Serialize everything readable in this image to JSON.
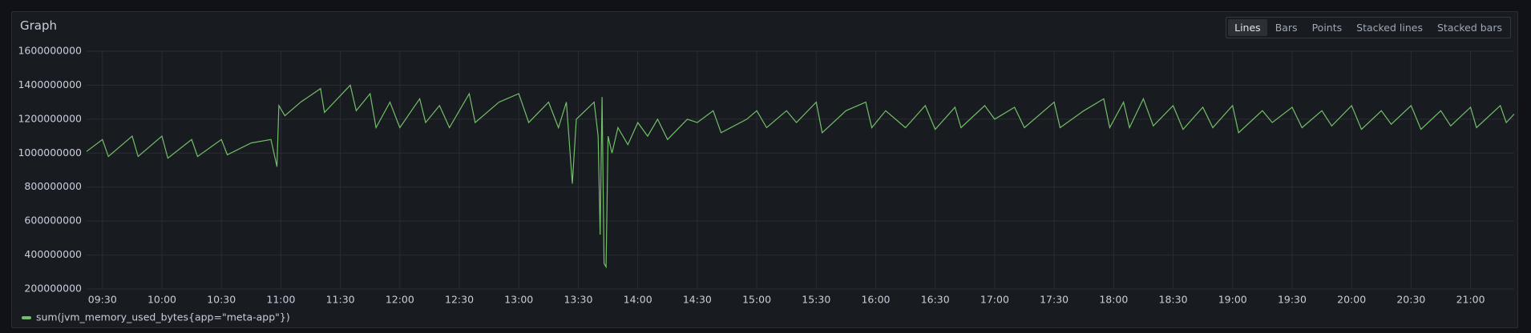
{
  "panel": {
    "title": "Graph",
    "modes": [
      "Lines",
      "Bars",
      "Points",
      "Stacked lines",
      "Stacked bars"
    ]
  },
  "chart_data": {
    "type": "line",
    "x": [
      "09:22",
      "09:30",
      "09:33",
      "09:45",
      "09:48",
      "10:00",
      "10:03",
      "10:15",
      "10:18",
      "10:30",
      "10:33",
      "10:45",
      "10:55",
      "10:58",
      "10:59",
      "11:02",
      "11:10",
      "11:20",
      "11:22",
      "11:35",
      "11:38",
      "11:45",
      "11:48",
      "11:55",
      "12:00",
      "12:10",
      "12:13",
      "12:20",
      "12:25",
      "12:35",
      "12:38",
      "12:50",
      "13:00",
      "13:05",
      "13:15",
      "13:20",
      "13:24",
      "13:27",
      "13:29",
      "13:38",
      "13:40",
      "13:41",
      "13:42",
      "13:43",
      "13:44",
      "13:45",
      "13:47",
      "13:50",
      "13:55",
      "14:00",
      "14:05",
      "14:10",
      "14:15",
      "14:25",
      "14:30",
      "14:38",
      "14:42",
      "14:55",
      "15:00",
      "15:05",
      "15:15",
      "15:20",
      "15:30",
      "15:33",
      "15:45",
      "15:55",
      "15:58",
      "16:05",
      "16:15",
      "16:25",
      "16:30",
      "16:40",
      "16:43",
      "16:55",
      "17:00",
      "17:10",
      "17:15",
      "17:30",
      "17:33",
      "17:45",
      "17:55",
      "17:58",
      "18:05",
      "18:08",
      "18:15",
      "18:20",
      "18:30",
      "18:35",
      "18:45",
      "18:50",
      "19:00",
      "19:03",
      "19:15",
      "19:20",
      "19:30",
      "19:35",
      "19:45",
      "19:50",
      "20:00",
      "20:05",
      "20:15",
      "20:20",
      "20:30",
      "20:35",
      "20:45",
      "20:50",
      "21:00",
      "21:03",
      "21:15",
      "21:18",
      "21:22"
    ],
    "series": [
      {
        "name": "sum(jvm_memory_used_bytes{app=\"meta-app\"})",
        "color": "#73bf69",
        "values": [
          1010000000.0,
          1080000000.0,
          980000000.0,
          1100000000.0,
          980000000.0,
          1100000000.0,
          970000000.0,
          1080000000.0,
          980000000.0,
          1080000000.0,
          990000000.0,
          1060000000.0,
          1080000000.0,
          920000000.0,
          1280000000.0,
          1220000000.0,
          1300000000.0,
          1380000000.0,
          1240000000.0,
          1400000000.0,
          1250000000.0,
          1350000000.0,
          1150000000.0,
          1300000000.0,
          1150000000.0,
          1320000000.0,
          1180000000.0,
          1280000000.0,
          1150000000.0,
          1350000000.0,
          1180000000.0,
          1300000000.0,
          1350000000.0,
          1180000000.0,
          1300000000.0,
          1150000000.0,
          1300000000.0,
          820000000.0,
          1200000000.0,
          1300000000.0,
          1100000000.0,
          520000000.0,
          1330000000.0,
          350000000.0,
          330000000.0,
          1100000000.0,
          1000000000.0,
          1150000000.0,
          1050000000.0,
          1180000000.0,
          1100000000.0,
          1200000000.0,
          1080000000.0,
          1200000000.0,
          1180000000.0,
          1250000000.0,
          1120000000.0,
          1200000000.0,
          1250000000.0,
          1150000000.0,
          1250000000.0,
          1180000000.0,
          1300000000.0,
          1120000000.0,
          1250000000.0,
          1300000000.0,
          1150000000.0,
          1250000000.0,
          1150000000.0,
          1280000000.0,
          1140000000.0,
          1270000000.0,
          1150000000.0,
          1280000000.0,
          1200000000.0,
          1270000000.0,
          1150000000.0,
          1300000000.0,
          1150000000.0,
          1250000000.0,
          1320000000.0,
          1150000000.0,
          1300000000.0,
          1150000000.0,
          1320000000.0,
          1160000000.0,
          1280000000.0,
          1140000000.0,
          1270000000.0,
          1150000000.0,
          1280000000.0,
          1120000000.0,
          1250000000.0,
          1180000000.0,
          1270000000.0,
          1150000000.0,
          1250000000.0,
          1160000000.0,
          1280000000.0,
          1140000000.0,
          1250000000.0,
          1170000000.0,
          1280000000.0,
          1140000000.0,
          1250000000.0,
          1160000000.0,
          1270000000.0,
          1150000000.0,
          1280000000.0,
          1180000000.0,
          1230000000.0
        ]
      }
    ],
    "xlim": [
      "09:22",
      "21:22"
    ],
    "xticks": [
      "09:30",
      "10:00",
      "10:30",
      "11:00",
      "11:30",
      "12:00",
      "12:30",
      "13:00",
      "13:30",
      "14:00",
      "14:30",
      "15:00",
      "15:30",
      "16:00",
      "16:30",
      "17:00",
      "17:30",
      "18:00",
      "18:30",
      "19:00",
      "19:30",
      "20:00",
      "20:30",
      "21:00"
    ],
    "ylim": [
      200000000,
      1600000000
    ],
    "yticks": [
      200000000,
      400000000,
      600000000,
      800000000,
      1000000000,
      1200000000,
      1400000000,
      1600000000
    ],
    "grid": true
  }
}
